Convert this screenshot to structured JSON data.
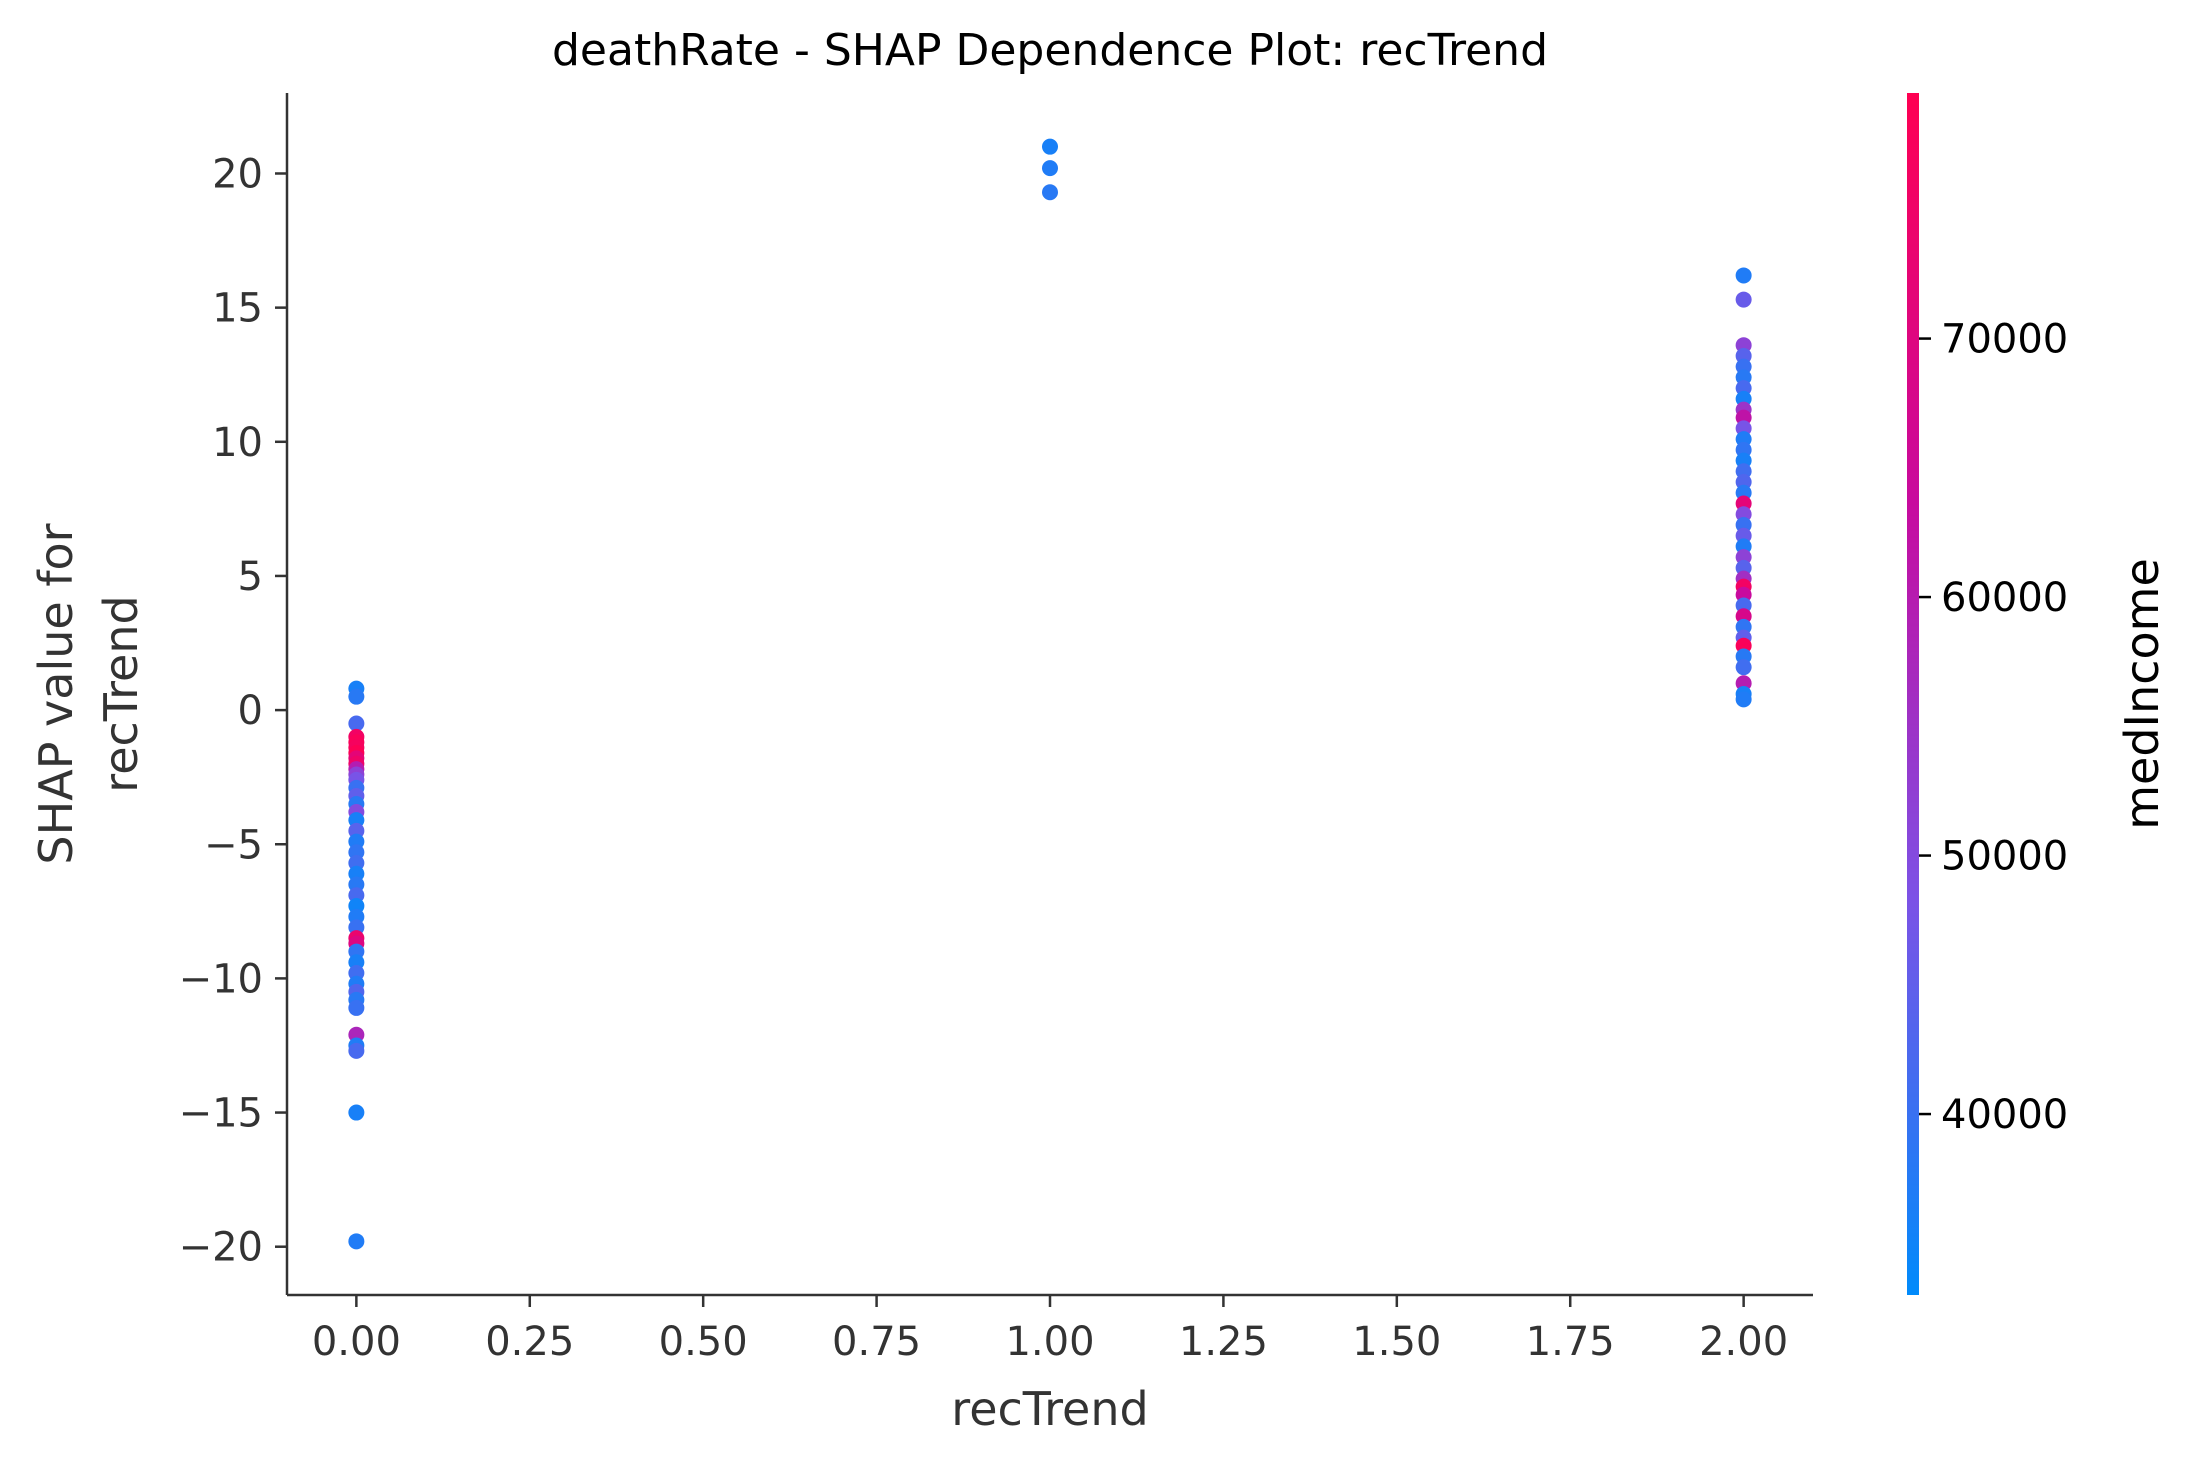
{
  "chart_data": {
    "type": "scatter",
    "title": "deathRate - SHAP Dependence Plot: recTrend",
    "xlabel": "recTrend",
    "ylabel_lines": [
      "SHAP value for",
      "recTrend"
    ],
    "xlim": [
      -0.1,
      2.1
    ],
    "ylim": [
      -21.8,
      23.0
    ],
    "xticks": [
      0.0,
      0.25,
      0.5,
      0.75,
      1.0,
      1.25,
      1.5,
      1.75,
      2.0
    ],
    "xtick_labels": [
      "0.00",
      "0.25",
      "0.50",
      "0.75",
      "1.00",
      "1.25",
      "1.50",
      "1.75",
      "2.00"
    ],
    "yticks": [
      20,
      15,
      10,
      5,
      0,
      -5,
      -10,
      -15,
      -20
    ],
    "ytick_labels": [
      "20",
      "15",
      "10",
      "5",
      "0",
      "−5",
      "−10",
      "−15",
      "−20"
    ],
    "grid": false,
    "colorbar": {
      "label": "medIncome",
      "range": [
        33000,
        79500
      ],
      "ticks": [
        40000,
        50000,
        60000,
        70000
      ],
      "tick_labels": [
        "40000",
        "50000",
        "60000",
        "70000"
      ],
      "colors": [
        "#008bfb",
        "#7c52e6",
        "#c80a9e",
        "#ff0052"
      ]
    },
    "points": [
      {
        "x": 0,
        "y": 0.8,
        "c": 36000
      },
      {
        "x": 0,
        "y": 0.5,
        "c": 38000
      },
      {
        "x": 0,
        "y": -0.5,
        "c": 42000
      },
      {
        "x": 0,
        "y": -1.0,
        "c": 76000
      },
      {
        "x": 0,
        "y": -1.2,
        "c": 78000
      },
      {
        "x": 0,
        "y": -1.4,
        "c": 77000
      },
      {
        "x": 0,
        "y": -1.6,
        "c": 79000
      },
      {
        "x": 0,
        "y": -1.8,
        "c": 72000
      },
      {
        "x": 0,
        "y": -2.0,
        "c": 75000
      },
      {
        "x": 0,
        "y": -2.2,
        "c": 60000
      },
      {
        "x": 0,
        "y": -2.4,
        "c": 52000
      },
      {
        "x": 0,
        "y": -2.6,
        "c": 48000
      },
      {
        "x": 0,
        "y": -2.9,
        "c": 40000
      },
      {
        "x": 0,
        "y": -3.2,
        "c": 45000
      },
      {
        "x": 0,
        "y": -3.5,
        "c": 38000
      },
      {
        "x": 0,
        "y": -3.8,
        "c": 50000
      },
      {
        "x": 0,
        "y": -4.1,
        "c": 36000
      },
      {
        "x": 0,
        "y": -4.5,
        "c": 44000
      },
      {
        "x": 0,
        "y": -4.9,
        "c": 37000
      },
      {
        "x": 0,
        "y": -5.3,
        "c": 39000
      },
      {
        "x": 0,
        "y": -5.7,
        "c": 41000
      },
      {
        "x": 0,
        "y": -6.1,
        "c": 36000
      },
      {
        "x": 0,
        "y": -6.5,
        "c": 38000
      },
      {
        "x": 0,
        "y": -6.9,
        "c": 42000
      },
      {
        "x": 0,
        "y": -7.3,
        "c": 35000
      },
      {
        "x": 0,
        "y": -7.7,
        "c": 37000
      },
      {
        "x": 0,
        "y": -8.1,
        "c": 40000
      },
      {
        "x": 0,
        "y": -8.5,
        "c": 74000
      },
      {
        "x": 0,
        "y": -8.7,
        "c": 70000
      },
      {
        "x": 0,
        "y": -9.0,
        "c": 39000
      },
      {
        "x": 0,
        "y": -9.4,
        "c": 36000
      },
      {
        "x": 0,
        "y": -9.8,
        "c": 41000
      },
      {
        "x": 0,
        "y": -10.2,
        "c": 37000
      },
      {
        "x": 0,
        "y": -10.5,
        "c": 43000
      },
      {
        "x": 0,
        "y": -10.8,
        "c": 38000
      },
      {
        "x": 0,
        "y": -11.1,
        "c": 40000
      },
      {
        "x": 0,
        "y": -12.1,
        "c": 58000
      },
      {
        "x": 0,
        "y": -12.5,
        "c": 37000
      },
      {
        "x": 0,
        "y": -12.7,
        "c": 42000
      },
      {
        "x": 0,
        "y": -15.0,
        "c": 36000
      },
      {
        "x": 0,
        "y": -19.8,
        "c": 37000
      },
      {
        "x": 1,
        "y": 21.0,
        "c": 36000
      },
      {
        "x": 1,
        "y": 20.2,
        "c": 37000
      },
      {
        "x": 1,
        "y": 19.3,
        "c": 38000
      },
      {
        "x": 2,
        "y": 16.2,
        "c": 37000
      },
      {
        "x": 2,
        "y": 15.3,
        "c": 46000
      },
      {
        "x": 2,
        "y": 13.6,
        "c": 52000
      },
      {
        "x": 2,
        "y": 13.2,
        "c": 44000
      },
      {
        "x": 2,
        "y": 12.8,
        "c": 40000
      },
      {
        "x": 2,
        "y": 12.4,
        "c": 38000
      },
      {
        "x": 2,
        "y": 12.0,
        "c": 42000
      },
      {
        "x": 2,
        "y": 11.6,
        "c": 36000
      },
      {
        "x": 2,
        "y": 11.2,
        "c": 55000
      },
      {
        "x": 2,
        "y": 10.9,
        "c": 62000
      },
      {
        "x": 2,
        "y": 10.5,
        "c": 48000
      },
      {
        "x": 2,
        "y": 10.1,
        "c": 37000
      },
      {
        "x": 2,
        "y": 9.7,
        "c": 39000
      },
      {
        "x": 2,
        "y": 9.3,
        "c": 36000
      },
      {
        "x": 2,
        "y": 8.9,
        "c": 41000
      },
      {
        "x": 2,
        "y": 8.5,
        "c": 43000
      },
      {
        "x": 2,
        "y": 8.1,
        "c": 38000
      },
      {
        "x": 2,
        "y": 7.7,
        "c": 72000
      },
      {
        "x": 2,
        "y": 7.3,
        "c": 50000
      },
      {
        "x": 2,
        "y": 6.9,
        "c": 40000
      },
      {
        "x": 2,
        "y": 6.5,
        "c": 46000
      },
      {
        "x": 2,
        "y": 6.1,
        "c": 37000
      },
      {
        "x": 2,
        "y": 5.7,
        "c": 52000
      },
      {
        "x": 2,
        "y": 5.3,
        "c": 44000
      },
      {
        "x": 2,
        "y": 4.9,
        "c": 56000
      },
      {
        "x": 2,
        "y": 4.6,
        "c": 76000
      },
      {
        "x": 2,
        "y": 4.3,
        "c": 64000
      },
      {
        "x": 2,
        "y": 3.9,
        "c": 42000
      },
      {
        "x": 2,
        "y": 3.5,
        "c": 68000
      },
      {
        "x": 2,
        "y": 3.1,
        "c": 39000
      },
      {
        "x": 2,
        "y": 2.7,
        "c": 45000
      },
      {
        "x": 2,
        "y": 2.4,
        "c": 78000
      },
      {
        "x": 2,
        "y": 2.0,
        "c": 38000
      },
      {
        "x": 2,
        "y": 1.6,
        "c": 41000
      },
      {
        "x": 2,
        "y": 1.0,
        "c": 60000
      },
      {
        "x": 2,
        "y": 0.6,
        "c": 36000
      },
      {
        "x": 2,
        "y": 0.4,
        "c": 37000
      }
    ]
  }
}
